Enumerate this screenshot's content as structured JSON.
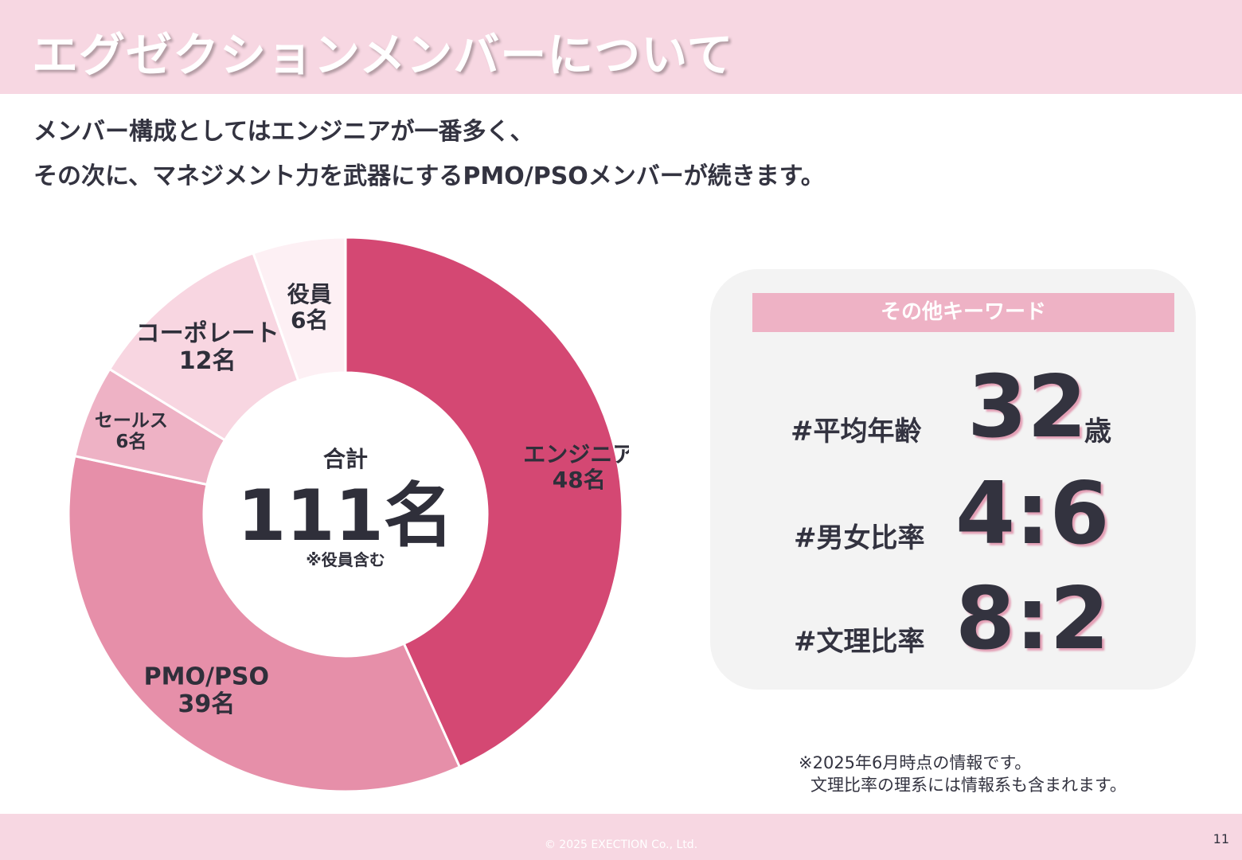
{
  "header": {
    "title": "エグゼクションメンバーについて"
  },
  "intro": {
    "line1": "メンバー構成としてはエンジニアが一番多く、",
    "line2": "その次に、マネジメント力を武器にするPMO/PSOメンバーが続きます。"
  },
  "chart_data": {
    "type": "pie",
    "donut": true,
    "slices": [
      {
        "label": "エンジニア",
        "value": 48,
        "value_label": "48名",
        "color": "#d44873"
      },
      {
        "label": "PMO/PSO",
        "value": 39,
        "value_label": "39名",
        "color": "#e68fa9"
      },
      {
        "label": "セールス",
        "value": 6,
        "value_label": "6名",
        "color": "#eeb2c5"
      },
      {
        "label": "コーポレート",
        "value": 12,
        "value_label": "12名",
        "color": "#f8d6e1"
      },
      {
        "label": "役員",
        "value": 6,
        "value_label": "6名",
        "color": "#fdf0f4"
      }
    ],
    "center": {
      "caption": "合計",
      "total": "111名",
      "note": "※役員含む"
    }
  },
  "keywords": {
    "header": "その他キーワード",
    "items": [
      {
        "label": "#平均年齢",
        "value": "32",
        "unit": "歳"
      },
      {
        "label": "#男女比率",
        "value": "4:6",
        "unit": ""
      },
      {
        "label": "#文理比率",
        "value": "8:2",
        "unit": ""
      }
    ]
  },
  "notes": {
    "line1": "※2025年6月時点の情報です。",
    "line2": "文理比率の理系には情報系も含まれます。"
  },
  "footer": {
    "copyright": "© 2025 EXECTION Co., Ltd.",
    "page": "11"
  }
}
